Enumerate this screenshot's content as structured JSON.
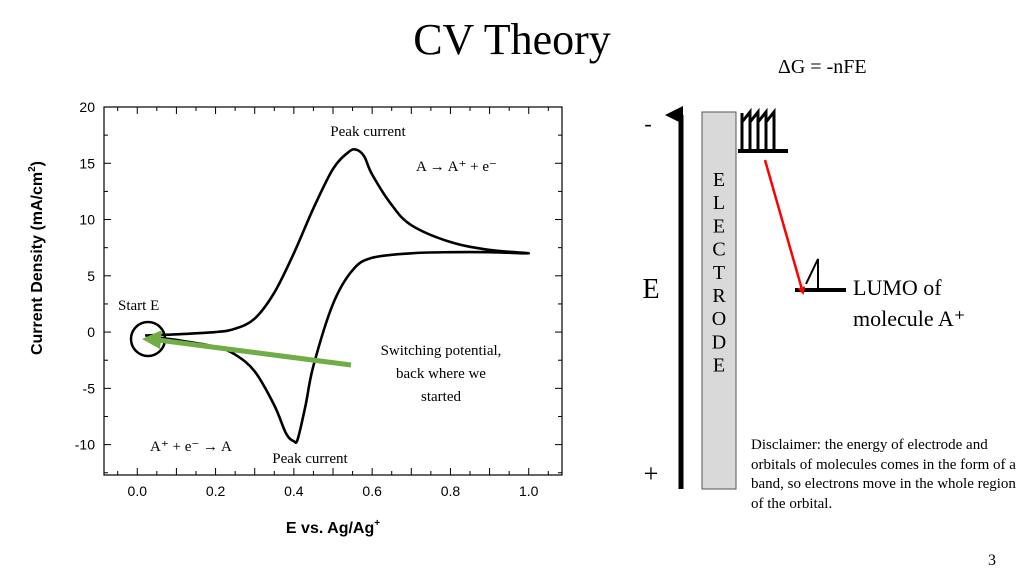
{
  "slide": {
    "title": "CV Theory",
    "equation": "ΔG = -nFE",
    "page_number": "3"
  },
  "chart_data": {
    "type": "line",
    "title": "",
    "xlabel": "E vs. Ag/Ag",
    "xlabel_superscript": "+",
    "ylabel": "Current Density (mA/cm",
    "ylabel_superscript": "2",
    "ylabel_suffix": ")",
    "xlim": [
      -0.085,
      1.085
    ],
    "ylim": [
      -12.7,
      20
    ],
    "x_ticks": [
      "0.0",
      "0.2",
      "0.4",
      "0.6",
      "0.8",
      "1.0"
    ],
    "x_tick_values": [
      0,
      0.2,
      0.4,
      0.6,
      0.8,
      1.0
    ],
    "y_ticks": [
      "20",
      "15",
      "10",
      "5",
      "0",
      "-5",
      "-10"
    ],
    "y_tick_values": [
      20,
      15,
      10,
      5,
      0,
      -5,
      -10
    ],
    "grid": false,
    "line_color": "#000000",
    "series": [
      {
        "x": [
          0.02,
          0.1,
          0.2,
          0.25,
          0.3,
          0.35,
          0.4,
          0.45,
          0.5,
          0.54,
          0.56,
          0.58,
          0.6,
          0.65,
          0.7,
          0.8,
          0.9,
          1.0,
          0.9,
          0.8,
          0.7,
          0.6,
          0.55,
          0.5,
          0.45,
          0.43,
          0.41,
          0.4,
          0.38,
          0.35,
          0.3,
          0.25,
          0.2,
          0.1,
          0.05
        ],
        "y": [
          -0.3,
          -0.2,
          0.0,
          0.3,
          1.2,
          3.5,
          7.0,
          11.0,
          14.5,
          16.0,
          16.2,
          15.6,
          14.0,
          11.3,
          9.5,
          8.0,
          7.3,
          7.0,
          7.1,
          7.1,
          7.0,
          6.6,
          5.5,
          2.5,
          -3.0,
          -6.5,
          -9.5,
          -9.7,
          -9.0,
          -6.5,
          -3.5,
          -2.0,
          -1.3,
          -0.7,
          -0.5
        ]
      }
    ],
    "annotations": {
      "peak_top": "Peak current",
      "peak_bottom": "Peak current",
      "oxidation": "A → A⁺ + e⁻",
      "reduction": "A⁺ + e⁻ → A",
      "start": "Start E",
      "switching": [
        "Switching potential,",
        "back where we",
        "started"
      ]
    },
    "arrow_color": "#70ad47"
  },
  "diagram": {
    "minus_label": "-",
    "plus_label": "+",
    "axis_label": "E",
    "electrode_letters": [
      "E",
      "L",
      "E",
      "C",
      "T",
      "R",
      "O",
      "D",
      "E"
    ],
    "electrode_fill": "#d9d9d9",
    "transfer_arrow_color": "#ff0000",
    "lumo_label": [
      "LUMO of",
      "molecule A⁺"
    ],
    "disclaimer": "Disclaimer: the energy of electrode and orbitals of molecules comes in the form of a band, so electrons move in the whole region of the orbital."
  }
}
